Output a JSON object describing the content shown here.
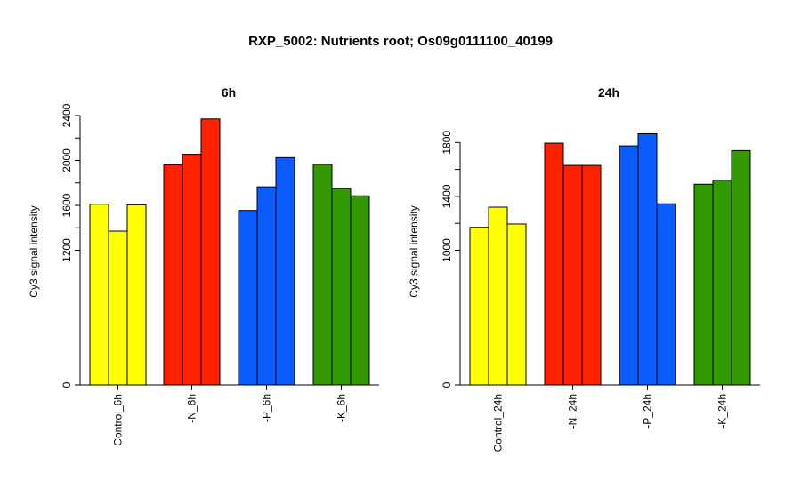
{
  "title": "RXP_5002: Nutrients root; Os09g0111100_40199",
  "colors": {
    "Control": "#ffff00",
    "N": "#ff2200",
    "P": "#0a5cff",
    "K": "#339900"
  },
  "chart_data": [
    {
      "type": "bar",
      "title": "6h",
      "ylabel": "Cy3 signal intensity",
      "categories": [
        "Control_6h",
        "-N_6h",
        "-P_6h",
        "-K_6h"
      ],
      "yticks": [
        0,
        1200,
        1600,
        2000,
        2400
      ],
      "ytick_labels": [
        "0",
        "1200",
        "1600",
        "2000",
        "2400"
      ],
      "ylim": [
        0,
        2400
      ],
      "groups": [
        {
          "category": "Control_6h",
          "color_key": "Control",
          "values": [
            1610,
            1370,
            1605
          ]
        },
        {
          "category": "-N_6h",
          "color_key": "N",
          "values": [
            1960,
            2055,
            2370
          ]
        },
        {
          "category": "-P_6h",
          "color_key": "P",
          "values": [
            1555,
            1765,
            2025
          ]
        },
        {
          "category": "-K_6h",
          "color_key": "K",
          "values": [
            1965,
            1750,
            1685
          ]
        }
      ]
    },
    {
      "type": "bar",
      "title": "24h",
      "ylabel": "Cy3 signal intensity",
      "categories": [
        "Control_24h",
        "-N_24h",
        "-P_24h",
        "-K_24h"
      ],
      "yticks": [
        0,
        1000,
        1400,
        1800
      ],
      "ytick_labels": [
        "0",
        "1000",
        "1400",
        "1800"
      ],
      "ylim": [
        0,
        2000
      ],
      "groups": [
        {
          "category": "Control_24h",
          "color_key": "Control",
          "values": [
            1170,
            1320,
            1195
          ]
        },
        {
          "category": "-N_24h",
          "color_key": "N",
          "values": [
            1795,
            1630,
            1630
          ]
        },
        {
          "category": "-P_24h",
          "color_key": "P",
          "values": [
            1775,
            1865,
            1345
          ]
        },
        {
          "category": "-K_24h",
          "color_key": "K",
          "values": [
            1490,
            1520,
            1740
          ]
        }
      ]
    }
  ]
}
